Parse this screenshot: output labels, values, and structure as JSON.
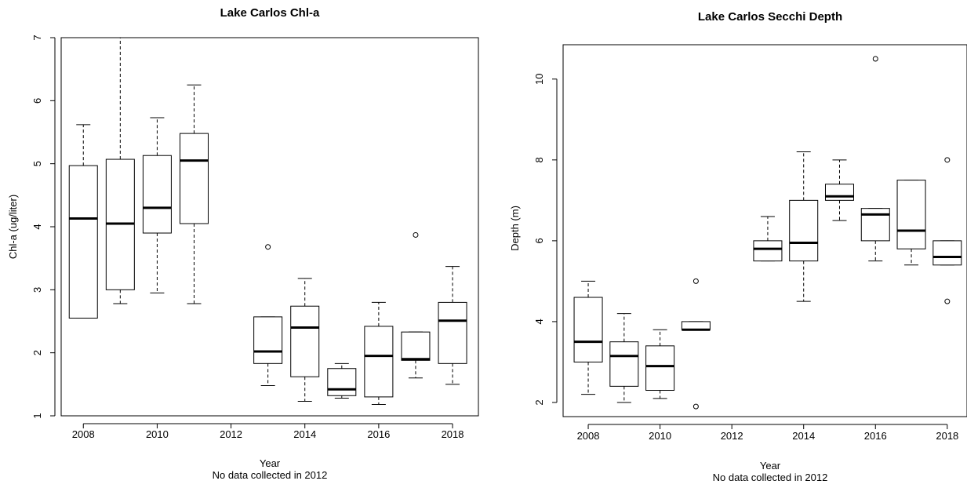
{
  "chart_data": [
    {
      "type": "boxplot",
      "title": "Lake Carlos Chl-a",
      "xlabel": "Year",
      "subtitle": "No data collected in 2012",
      "ylabel": "Chl-a (ug/liter)",
      "ylim": [
        1,
        7
      ],
      "xlim": [
        2007.4,
        2018.7
      ],
      "yticks": [
        1,
        2,
        3,
        4,
        5,
        6,
        7
      ],
      "xticks": [
        2008,
        2010,
        2012,
        2014,
        2016,
        2018
      ],
      "grid": false,
      "boxes": [
        {
          "year": 2008,
          "whisker_low": 2.55,
          "q1": 2.55,
          "median": 4.13,
          "q3": 4.97,
          "whisker_high": 5.62,
          "outliers": []
        },
        {
          "year": 2009,
          "whisker_low": 2.78,
          "q1": 3.0,
          "median": 4.05,
          "q3": 5.07,
          "whisker_high": 7.0,
          "outliers": []
        },
        {
          "year": 2010,
          "whisker_low": 2.95,
          "q1": 3.9,
          "median": 4.3,
          "q3": 5.13,
          "whisker_high": 5.73,
          "outliers": []
        },
        {
          "year": 2011,
          "whisker_low": 2.78,
          "q1": 4.05,
          "median": 5.05,
          "q3": 5.48,
          "whisker_high": 6.25,
          "outliers": []
        },
        {
          "year": 2013,
          "whisker_low": 1.48,
          "q1": 1.83,
          "median": 2.02,
          "q3": 2.57,
          "whisker_high": 2.57,
          "outliers": [
            3.68
          ]
        },
        {
          "year": 2014,
          "whisker_low": 1.23,
          "q1": 1.62,
          "median": 2.4,
          "q3": 2.74,
          "whisker_high": 3.18,
          "outliers": []
        },
        {
          "year": 2015,
          "whisker_low": 1.28,
          "q1": 1.32,
          "median": 1.42,
          "q3": 1.75,
          "whisker_high": 1.83,
          "outliers": []
        },
        {
          "year": 2016,
          "whisker_low": 1.18,
          "q1": 1.3,
          "median": 1.95,
          "q3": 2.42,
          "whisker_high": 2.8,
          "outliers": []
        },
        {
          "year": 2017,
          "whisker_low": 1.6,
          "q1": 1.88,
          "median": 1.9,
          "q3": 2.33,
          "whisker_high": 2.33,
          "outliers": [
            3.87
          ]
        },
        {
          "year": 2018,
          "whisker_low": 1.5,
          "q1": 1.83,
          "median": 2.51,
          "q3": 2.8,
          "whisker_high": 3.37,
          "outliers": []
        }
      ]
    },
    {
      "type": "boxplot",
      "title": "Lake Carlos Secchi Depth",
      "xlabel": "Year",
      "subtitle": "No data collected in 2012",
      "ylabel": "Depth (m)",
      "ylim": [
        1.65,
        10.85
      ],
      "xlim": [
        2007.3,
        2018.55
      ],
      "yticks": [
        2,
        4,
        6,
        8,
        10
      ],
      "xticks": [
        2008,
        2010,
        2012,
        2014,
        2016,
        2018
      ],
      "grid": false,
      "boxes": [
        {
          "year": 2008,
          "whisker_low": 2.2,
          "q1": 3.0,
          "median": 3.5,
          "q3": 4.6,
          "whisker_high": 5.0,
          "outliers": []
        },
        {
          "year": 2009,
          "whisker_low": 2.0,
          "q1": 2.4,
          "median": 3.15,
          "q3": 3.5,
          "whisker_high": 4.2,
          "outliers": []
        },
        {
          "year": 2010,
          "whisker_low": 2.1,
          "q1": 2.3,
          "median": 2.9,
          "q3": 3.4,
          "whisker_high": 3.8,
          "outliers": []
        },
        {
          "year": 2011,
          "whisker_low": 3.8,
          "q1": 3.8,
          "median": 3.8,
          "q3": 4.0,
          "whisker_high": 4.0,
          "outliers": [
            5.0,
            1.9
          ]
        },
        {
          "year": 2013,
          "whisker_low": 5.5,
          "q1": 5.5,
          "median": 5.8,
          "q3": 6.0,
          "whisker_high": 6.6,
          "outliers": []
        },
        {
          "year": 2014,
          "whisker_low": 4.5,
          "q1": 5.5,
          "median": 5.95,
          "q3": 7.0,
          "whisker_high": 8.2,
          "outliers": []
        },
        {
          "year": 2015,
          "whisker_low": 6.5,
          "q1": 7.0,
          "median": 7.1,
          "q3": 7.4,
          "whisker_high": 8.0,
          "outliers": []
        },
        {
          "year": 2016,
          "whisker_low": 5.5,
          "q1": 6.0,
          "median": 6.65,
          "q3": 6.8,
          "whisker_high": 6.8,
          "outliers": [
            10.5
          ]
        },
        {
          "year": 2017,
          "whisker_low": 5.4,
          "q1": 5.8,
          "median": 6.25,
          "q3": 7.5,
          "whisker_high": 7.5,
          "outliers": []
        },
        {
          "year": 2018,
          "whisker_low": 5.4,
          "q1": 5.4,
          "median": 5.6,
          "q3": 6.0,
          "whisker_high": 6.0,
          "outliers": [
            8.0,
            4.5
          ]
        }
      ]
    }
  ]
}
